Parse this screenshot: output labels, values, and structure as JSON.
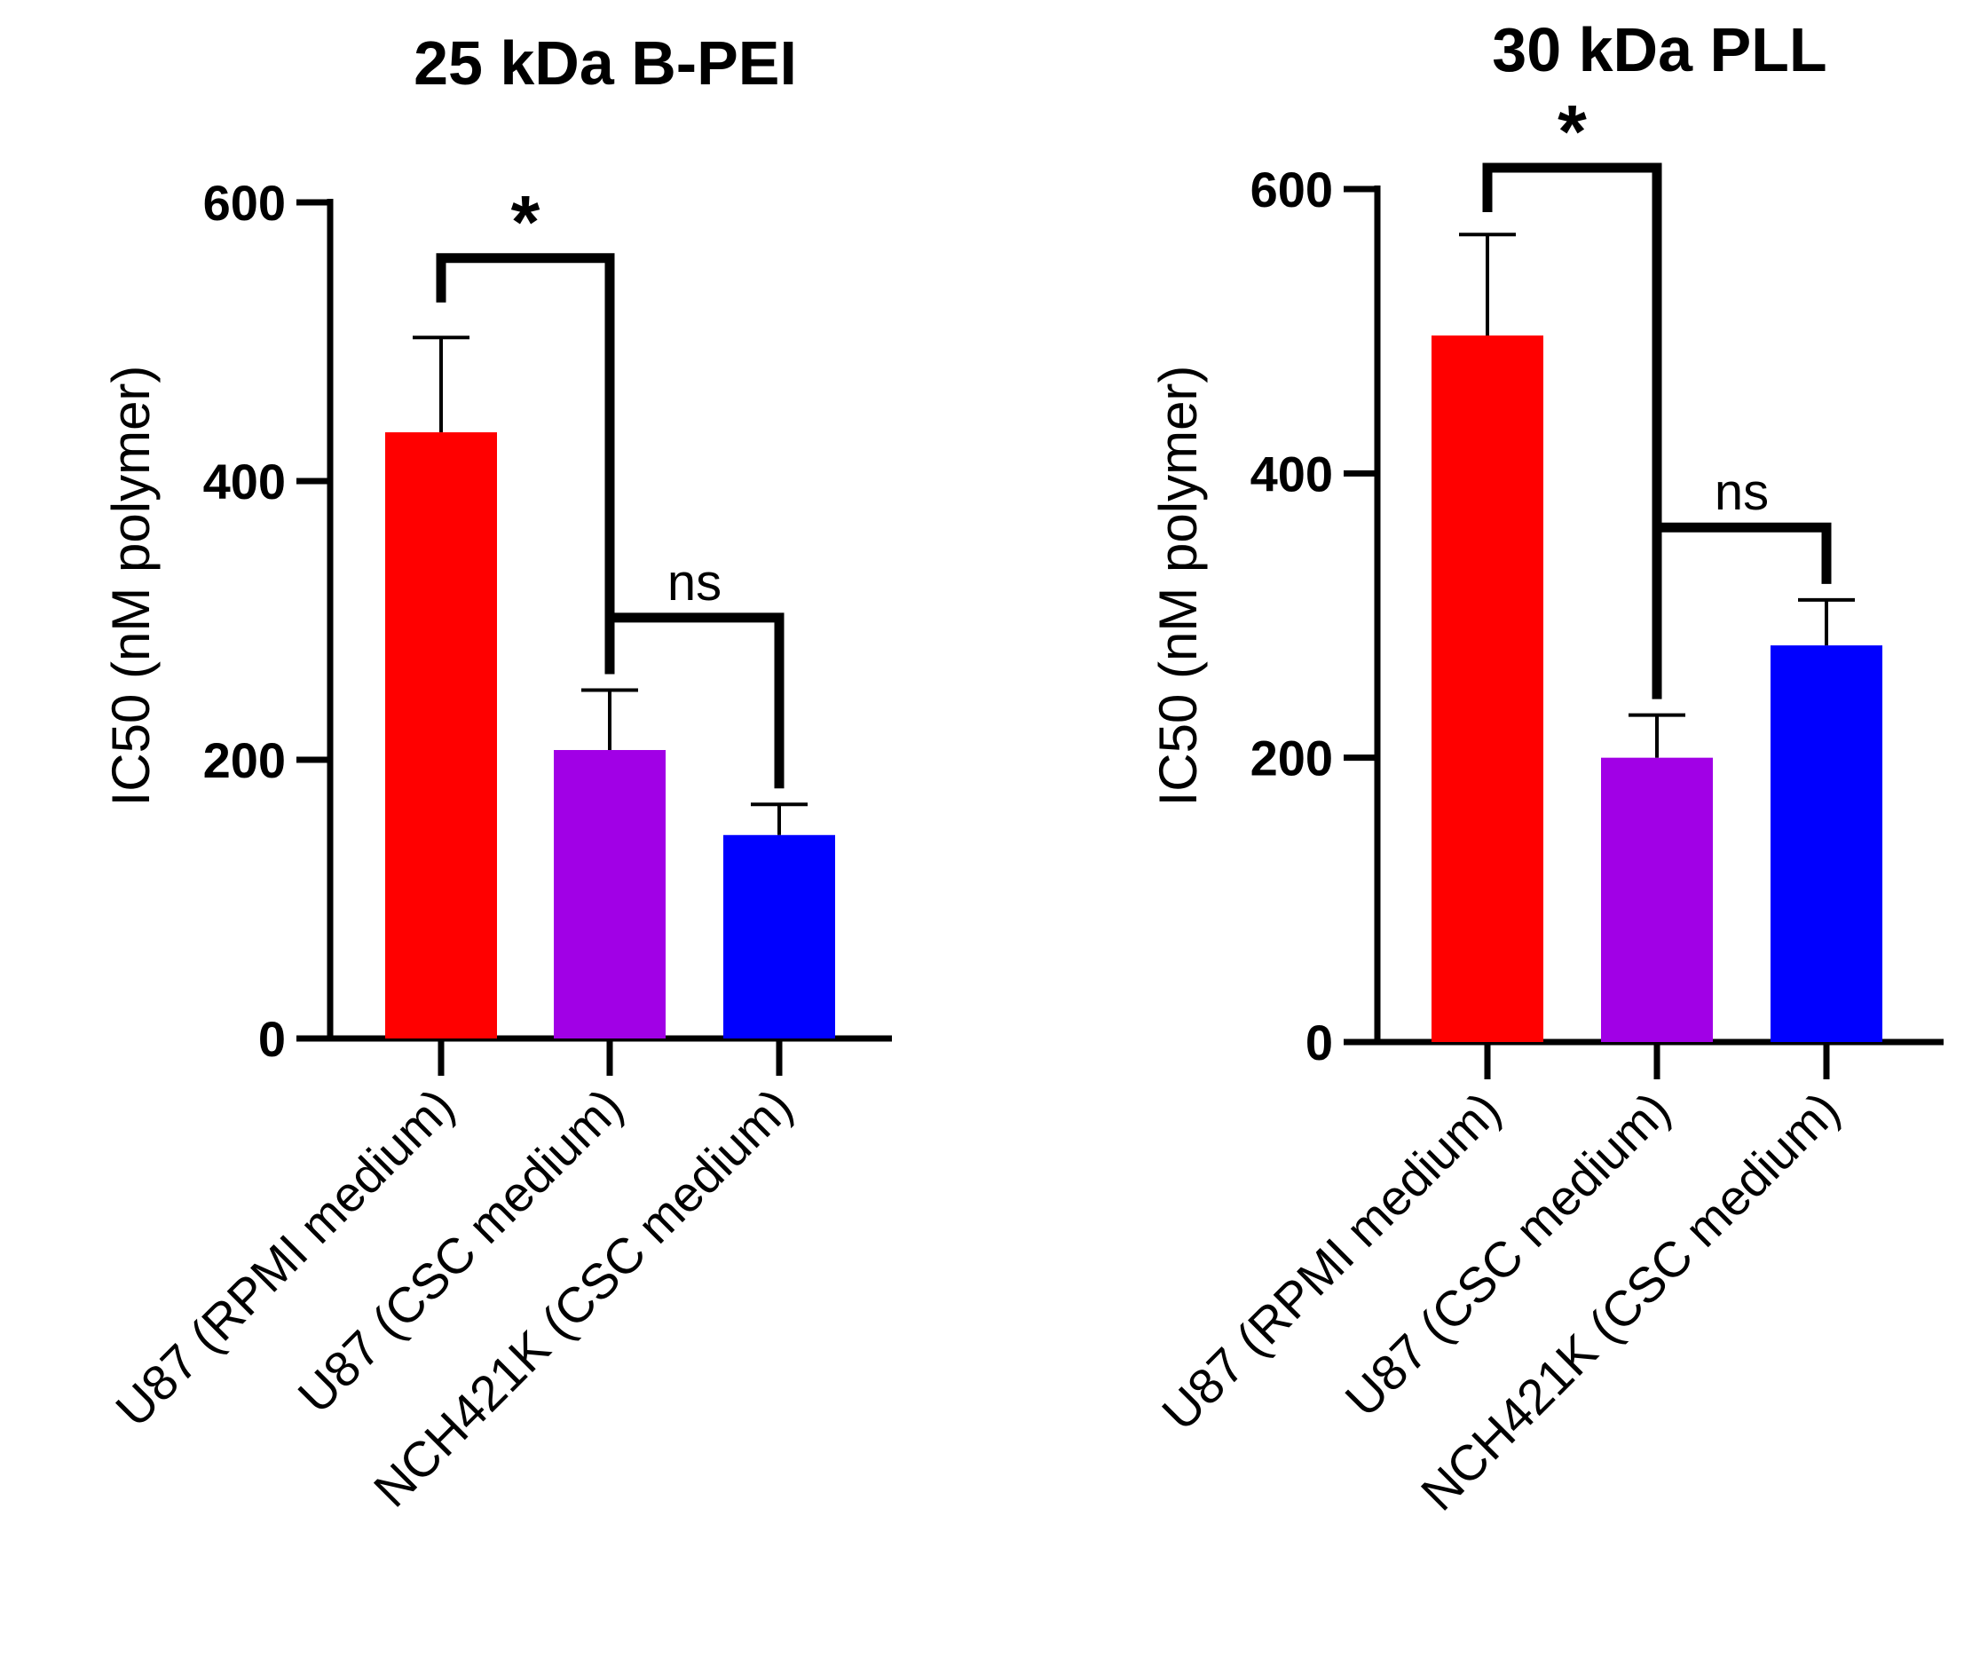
{
  "chart_data": [
    {
      "type": "bar",
      "title": "25 kDa B-PEI",
      "ylabel": "IC50 (nM polymer)",
      "xlabel": "",
      "ylim": [
        0,
        600
      ],
      "yticks": [
        0,
        200,
        400,
        600
      ],
      "categories": [
        "U87 (RPMI medium)",
        "U87 (CSC medium)",
        "NCH421K (CSC medium)"
      ],
      "values": [
        435,
        207,
        146
      ],
      "errors": [
        68,
        43,
        22
      ],
      "colors": [
        "#ff0000",
        "#a100e6",
        "#0000ff"
      ],
      "comparisons": [
        {
          "from": 0,
          "to": 1,
          "label": "*",
          "y": 560
        },
        {
          "from": 1,
          "to": 2,
          "label": "ns",
          "y": 302
        }
      ]
    },
    {
      "type": "bar",
      "title": "30 kDa PLL",
      "ylabel": "IC50 (nM polymer)",
      "xlabel": "",
      "ylim": [
        0,
        600
      ],
      "yticks": [
        0,
        200,
        400,
        600
      ],
      "categories": [
        "U87 (RPMI medium)",
        "U87 (CSC medium)",
        "NCH421K (CSC medium)"
      ],
      "values": [
        497,
        200,
        279
      ],
      "errors": [
        71,
        30,
        32
      ],
      "colors": [
        "#ff0000",
        "#a100e6",
        "#0000ff"
      ],
      "comparisons": [
        {
          "from": 0,
          "to": 1,
          "label": "*",
          "y": 615
        },
        {
          "from": 1,
          "to": 2,
          "label": "ns",
          "y": 362
        }
      ]
    }
  ]
}
